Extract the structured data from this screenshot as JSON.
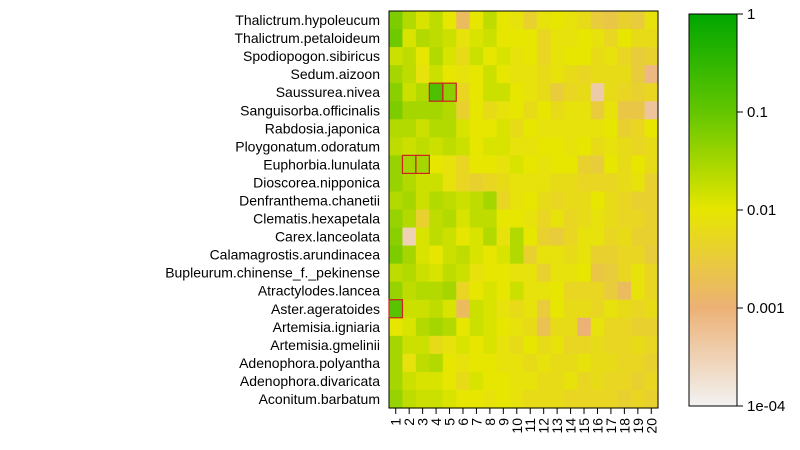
{
  "chart_data": {
    "type": "heatmap",
    "title": "",
    "xlabel": "",
    "ylabel": "",
    "rows": [
      "Thalictrum.hypoleucum",
      "Thalictrum.petaloideum",
      "Spodiopogon.sibiricus",
      "Sedum.aizoon",
      "Saussurea.nivea",
      "Sanguisorba.officinalis",
      "Rabdosia.japonica",
      "Ploygonatum.odoratum",
      "Euphorbia.lunulata",
      "Dioscorea.nipponica",
      "Denfranthema.chanetii",
      "Clematis.hexapetala",
      "Carex.lanceolata",
      "Calamagrostis.arundinacea",
      "Bupleurum.chinense_f._pekinense",
      "Atractylodes.lancea",
      "Aster.ageratoides",
      "Artemisia.igniaria",
      "Artemisia.gmelinii",
      "Adenophora.polyantha",
      "Adenophora.divaricata",
      "Aconitum.barbatum"
    ],
    "columns": [
      "1",
      "2",
      "3",
      "4",
      "5",
      "6",
      "7",
      "8",
      "9",
      "10",
      "11",
      "12",
      "13",
      "14",
      "15",
      "16",
      "17",
      "18",
      "19",
      "20"
    ],
    "values_log10": [
      [
        -1.2,
        -1.6,
        -1.9,
        -1.7,
        -2.0,
        -2.8,
        -2.0,
        -1.7,
        -2.0,
        -2.1,
        -2.4,
        -2.1,
        -2.0,
        -2.1,
        -2.2,
        -2.5,
        -2.6,
        -2.4,
        -2.5,
        -2.1
      ],
      [
        -1.1,
        -1.9,
        -1.6,
        -1.7,
        -1.8,
        -2.1,
        -1.9,
        -1.8,
        -2.0,
        -2.0,
        -2.0,
        -2.3,
        -2.1,
        -2.1,
        -2.0,
        -2.1,
        -2.3,
        -2.0,
        -2.2,
        -2.2
      ],
      [
        -1.8,
        -1.7,
        -2.0,
        -1.6,
        -1.9,
        -2.2,
        -1.8,
        -2.0,
        -1.9,
        -2.1,
        -2.0,
        -2.3,
        -2.1,
        -2.0,
        -2.0,
        -2.2,
        -2.1,
        -2.3,
        -2.5,
        -2.4
      ],
      [
        -1.5,
        -1.7,
        -2.1,
        -1.8,
        -2.0,
        -2.1,
        -2.0,
        -1.8,
        -2.0,
        -2.1,
        -2.1,
        -2.2,
        -2.1,
        -2.2,
        -2.3,
        -2.2,
        -2.2,
        -2.2,
        -2.5,
        -3.1
      ],
      [
        -1.3,
        -1.8,
        -1.6,
        -0.8,
        -1.3,
        -2.3,
        -2.0,
        -1.8,
        -1.8,
        -2.0,
        -2.1,
        -2.2,
        -2.5,
        -2.3,
        -2.2,
        -3.4,
        -2.2,
        -2.3,
        -2.4,
        -2.3
      ],
      [
        -1.2,
        -1.5,
        -1.5,
        -1.5,
        -1.6,
        -2.4,
        -2.0,
        -2.2,
        -2.1,
        -2.0,
        -2.2,
        -2.0,
        -2.2,
        -2.1,
        -2.1,
        -2.5,
        -2.1,
        -2.6,
        -2.6,
        -3.3
      ],
      [
        -1.6,
        -1.6,
        -1.8,
        -1.6,
        -1.6,
        -1.9,
        -2.0,
        -2.0,
        -1.9,
        -2.2,
        -2.0,
        -2.1,
        -2.1,
        -2.1,
        -2.1,
        -2.1,
        -2.0,
        -2.4,
        -2.3,
        -2.0
      ],
      [
        -1.7,
        -1.8,
        -1.7,
        -1.8,
        -1.7,
        -1.8,
        -2.0,
        -1.9,
        -1.9,
        -2.1,
        -2.1,
        -2.0,
        -2.0,
        -2.1,
        -2.0,
        -2.2,
        -2.1,
        -2.2,
        -2.3,
        -2.2
      ],
      [
        -1.4,
        -1.5,
        -1.5,
        -2.0,
        -2.1,
        -2.3,
        -2.0,
        -2.0,
        -2.1,
        -1.9,
        -2.0,
        -2.1,
        -2.0,
        -2.0,
        -2.4,
        -2.5,
        -2.0,
        -2.2,
        -2.0,
        -2.2
      ],
      [
        -1.4,
        -1.6,
        -1.8,
        -1.8,
        -2.1,
        -2.3,
        -2.4,
        -2.3,
        -2.2,
        -2.1,
        -2.1,
        -2.1,
        -2.2,
        -2.2,
        -2.3,
        -2.3,
        -2.3,
        -2.2,
        -2.1,
        -2.4
      ],
      [
        -1.6,
        -1.5,
        -1.8,
        -1.6,
        -1.7,
        -1.8,
        -1.7,
        -1.5,
        -2.3,
        -2.1,
        -2.0,
        -2.2,
        -2.3,
        -2.2,
        -2.2,
        -2.0,
        -2.2,
        -2.3,
        -2.4,
        -2.4
      ],
      [
        -1.4,
        -1.6,
        -2.4,
        -1.7,
        -1.6,
        -1.9,
        -1.7,
        -1.7,
        -2.0,
        -2.0,
        -2.1,
        -2.3,
        -2.1,
        -2.3,
        -2.2,
        -2.1,
        -2.2,
        -2.3,
        -2.3,
        -2.4
      ],
      [
        -1.3,
        -3.5,
        -1.9,
        -1.7,
        -1.8,
        -2.0,
        -1.9,
        -1.6,
        -2.1,
        -1.6,
        -2.0,
        -2.4,
        -2.5,
        -2.3,
        -2.1,
        -2.1,
        -2.3,
        -2.2,
        -2.4,
        -2.4
      ],
      [
        -1.2,
        -1.5,
        -1.9,
        -2.0,
        -1.8,
        -1.7,
        -1.9,
        -2.0,
        -1.9,
        -1.6,
        -2.4,
        -2.1,
        -2.1,
        -2.2,
        -2.1,
        -2.4,
        -2.4,
        -2.3,
        -2.3,
        -2.5
      ],
      [
        -1.7,
        -1.6,
        -1.8,
        -1.9,
        -1.7,
        -1.8,
        -2.1,
        -2.0,
        -2.0,
        -2.1,
        -2.1,
        -2.4,
        -2.1,
        -2.1,
        -2.0,
        -2.6,
        -2.5,
        -2.3,
        -2.1,
        -2.3
      ],
      [
        -1.4,
        -1.7,
        -1.6,
        -1.6,
        -1.5,
        -2.3,
        -2.0,
        -1.9,
        -2.0,
        -1.8,
        -2.1,
        -2.1,
        -2.0,
        -2.3,
        -2.3,
        -2.3,
        -2.5,
        -2.8,
        -2.1,
        -2.3
      ],
      [
        -0.9,
        -1.8,
        -1.8,
        -1.7,
        -1.9,
        -2.8,
        -1.8,
        -1.9,
        -2.1,
        -2.2,
        -2.1,
        -2.5,
        -2.0,
        -2.2,
        -2.2,
        -2.3,
        -2.1,
        -2.2,
        -2.3,
        -2.2
      ],
      [
        -2.0,
        -1.9,
        -1.6,
        -1.5,
        -1.6,
        -2.0,
        -1.8,
        -1.9,
        -2.0,
        -2.1,
        -2.2,
        -2.7,
        -2.2,
        -2.2,
        -3.0,
        -2.1,
        -2.3,
        -2.3,
        -2.4,
        -2.4
      ],
      [
        -1.5,
        -1.8,
        -1.8,
        -2.2,
        -2.1,
        -1.9,
        -2.0,
        -1.9,
        -2.1,
        -2.2,
        -2.0,
        -2.2,
        -2.1,
        -2.3,
        -2.3,
        -2.2,
        -2.3,
        -2.3,
        -2.2,
        -2.3
      ],
      [
        -1.5,
        -2.1,
        -1.7,
        -1.6,
        -2.0,
        -2.1,
        -2.0,
        -2.0,
        -2.1,
        -2.1,
        -2.2,
        -2.1,
        -2.2,
        -2.2,
        -2.1,
        -2.2,
        -2.2,
        -2.3,
        -2.3,
        -2.4
      ],
      [
        -1.5,
        -1.8,
        -1.9,
        -1.9,
        -2.0,
        -2.2,
        -1.9,
        -2.0,
        -2.0,
        -2.1,
        -2.1,
        -2.2,
        -2.2,
        -2.1,
        -2.3,
        -2.2,
        -2.3,
        -2.3,
        -2.4,
        -2.3
      ],
      [
        -1.4,
        -1.7,
        -1.8,
        -1.8,
        -1.9,
        -2.0,
        -2.0,
        -2.1,
        -2.0,
        -2.1,
        -2.2,
        -2.2,
        -2.2,
        -2.3,
        -2.3,
        -2.3,
        -2.3,
        -2.4,
        -2.3,
        -2.4
      ]
    ],
    "highlighted_cells": [
      {
        "row": "Saussurea.nivea",
        "column": "4"
      },
      {
        "row": "Saussurea.nivea",
        "column": "5"
      },
      {
        "row": "Euphorbia.lunulata",
        "column": "2"
      },
      {
        "row": "Euphorbia.lunulata",
        "column": "3"
      },
      {
        "row": "Aster.ageratoides",
        "column": "1"
      }
    ],
    "highlight_color": "#cc2222",
    "color_scale": {
      "scale": "log10",
      "range": [
        0.0001,
        1
      ],
      "ticks": [
        {
          "value": 1,
          "label": "1"
        },
        {
          "value": 0.1,
          "label": "0.1"
        },
        {
          "value": 0.01,
          "label": "0.01"
        },
        {
          "value": 0.001,
          "label": "0.001"
        },
        {
          "value": 0.0001,
          "label": "1e-04"
        }
      ],
      "colors": [
        {
          "value": 0.0001,
          "color": "#f2f2f2"
        },
        {
          "value": 0.001,
          "color": "#ecb176"
        },
        {
          "value": 0.01,
          "color": "#e6e600"
        },
        {
          "value": 0.1,
          "color": "#63c600"
        },
        {
          "value": 1,
          "color": "#00a600"
        }
      ]
    }
  }
}
